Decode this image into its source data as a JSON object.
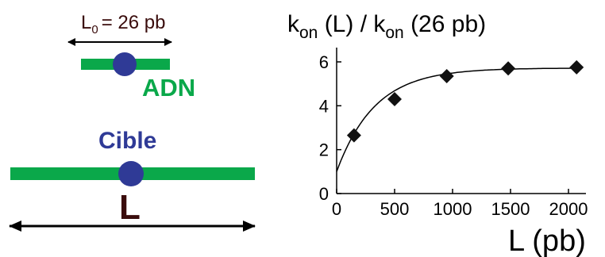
{
  "schematic": {
    "l0_label": "L",
    "l0_subscript": "0",
    "l0_value": "= 26 pb",
    "dna_label": "ADN",
    "target_label": "Cible",
    "length_label": "L"
  },
  "colors": {
    "dna_green": "#0aa84a",
    "target_blue": "#2f3a96",
    "dark_brown": "#3a0c0c",
    "line_black": "#000000"
  },
  "chart_title": {
    "k1": "k",
    "sub1": "on",
    "mid": " (L) / ",
    "k2": "k",
    "sub2": "on",
    "tail": " (26 pb)"
  },
  "chart_data": {
    "type": "scatter",
    "title": "",
    "xlabel": "L (pb)",
    "ylabel": "",
    "xlim": [
      0,
      2200
    ],
    "ylim": [
      0,
      6.6
    ],
    "x_ticks": [
      0,
      500,
      1000,
      1500,
      2000
    ],
    "y_ticks": [
      0,
      2,
      4,
      6
    ],
    "x_tick_labels": [
      "0",
      "500",
      "1000",
      "1500",
      "2000"
    ],
    "y_tick_labels": [
      "0",
      "2",
      "4",
      "6"
    ],
    "marker": "diamond",
    "series": [
      {
        "points": [
          {
            "x": 150,
            "y": 2.65
          },
          {
            "x": 500,
            "y": 4.3
          },
          {
            "x": 950,
            "y": 5.35
          },
          {
            "x": 1480,
            "y": 5.7
          },
          {
            "x": 2070,
            "y": 5.75
          }
        ]
      }
    ],
    "fit_curve": {
      "form": "saturating",
      "y0": 1.0,
      "plateau": 5.72,
      "scale": 330
    },
    "grid": false,
    "legend": "none"
  }
}
